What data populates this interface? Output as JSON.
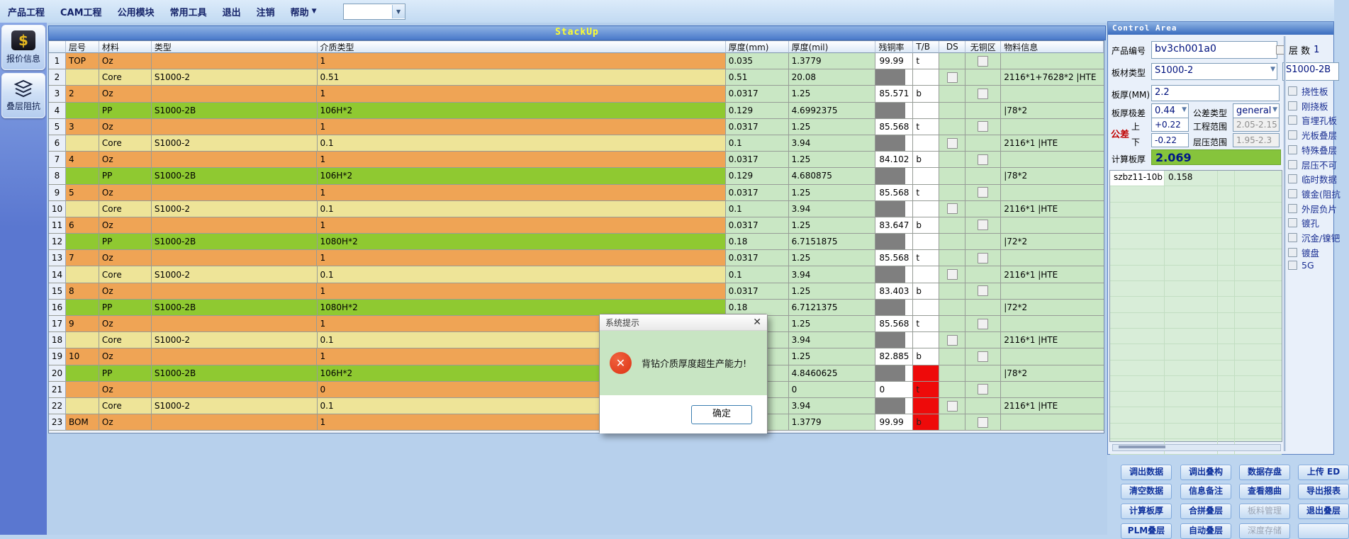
{
  "menu": {
    "items": [
      "产品工程",
      "CAM工程",
      "公用模块",
      "常用工具",
      "退出",
      "注销",
      "帮助"
    ],
    "combo_value": ""
  },
  "sidebar": {
    "buttons": [
      {
        "label": "报价信息",
        "icon": "dollar-icon"
      },
      {
        "label": "叠层阻抗",
        "icon": "layers-icon"
      }
    ]
  },
  "stackup": {
    "title": "StackUp",
    "header": {
      "layer": "层号",
      "material": "材料",
      "type": "类型",
      "medium": "介质类型",
      "mm": "厚度(mm)",
      "mil": "厚度(mil)",
      "copper": "残铜率",
      "tb": "T/B",
      "ds": "DS",
      "nocu": "无铜区",
      "info": "物料信息"
    },
    "rows": [
      {
        "n": "1",
        "layer": "TOP",
        "mat": "Oz",
        "type": "",
        "med": "1",
        "mm": "0.035",
        "mil": "1.3779",
        "cu": "99.99",
        "cu_gray": false,
        "tb": "t",
        "tb_red": false,
        "ds_cb": false,
        "nocu_cb": true,
        "info": "",
        "kind": "oz"
      },
      {
        "n": "2",
        "layer": "",
        "mat": "Core",
        "type": "S1000-2",
        "med": "0.51",
        "mm": "0.51",
        "mil": "20.08",
        "cu": "",
        "cu_gray": true,
        "tb": "",
        "tb_red": false,
        "ds_cb": true,
        "nocu_cb": false,
        "info": "2116*1+7628*2 |HTE",
        "kind": "core"
      },
      {
        "n": "3",
        "layer": "2",
        "mat": "Oz",
        "type": "",
        "med": "1",
        "mm": "0.0317",
        "mil": "1.25",
        "cu": "85.571",
        "cu_gray": false,
        "tb": "b",
        "tb_red": false,
        "ds_cb": false,
        "nocu_cb": true,
        "info": "",
        "kind": "oz"
      },
      {
        "n": "4",
        "layer": "",
        "mat": "PP",
        "type": "S1000-2B",
        "med": "106H*2",
        "mm": "0.129",
        "mil": "4.6992375",
        "cu": "",
        "cu_gray": true,
        "tb": "",
        "tb_red": false,
        "ds_cb": false,
        "nocu_cb": false,
        "info": "|78*2",
        "kind": "pp"
      },
      {
        "n": "5",
        "layer": "3",
        "mat": "Oz",
        "type": "",
        "med": "1",
        "mm": "0.0317",
        "mil": "1.25",
        "cu": "85.568",
        "cu_gray": false,
        "tb": "t",
        "tb_red": false,
        "ds_cb": false,
        "nocu_cb": true,
        "info": "",
        "kind": "oz"
      },
      {
        "n": "6",
        "layer": "",
        "mat": "Core",
        "type": "S1000-2",
        "med": "0.1",
        "mm": "0.1",
        "mil": "3.94",
        "cu": "",
        "cu_gray": true,
        "tb": "",
        "tb_red": false,
        "ds_cb": true,
        "nocu_cb": false,
        "info": "2116*1 |HTE",
        "kind": "core"
      },
      {
        "n": "7",
        "layer": "4",
        "mat": "Oz",
        "type": "",
        "med": "1",
        "mm": "0.0317",
        "mil": "1.25",
        "cu": "84.102",
        "cu_gray": false,
        "tb": "b",
        "tb_red": false,
        "ds_cb": false,
        "nocu_cb": true,
        "info": "",
        "kind": "oz"
      },
      {
        "n": "8",
        "layer": "",
        "mat": "PP",
        "type": "S1000-2B",
        "med": "106H*2",
        "mm": "0.129",
        "mil": "4.680875",
        "cu": "",
        "cu_gray": true,
        "tb": "",
        "tb_red": false,
        "ds_cb": false,
        "nocu_cb": false,
        "info": "|78*2",
        "kind": "pp"
      },
      {
        "n": "9",
        "layer": "5",
        "mat": "Oz",
        "type": "",
        "med": "1",
        "mm": "0.0317",
        "mil": "1.25",
        "cu": "85.568",
        "cu_gray": false,
        "tb": "t",
        "tb_red": false,
        "ds_cb": false,
        "nocu_cb": true,
        "info": "",
        "kind": "oz"
      },
      {
        "n": "10",
        "layer": "",
        "mat": "Core",
        "type": "S1000-2",
        "med": "0.1",
        "mm": "0.1",
        "mil": "3.94",
        "cu": "",
        "cu_gray": true,
        "tb": "",
        "tb_red": false,
        "ds_cb": true,
        "nocu_cb": false,
        "info": "2116*1 |HTE",
        "kind": "core"
      },
      {
        "n": "11",
        "layer": "6",
        "mat": "Oz",
        "type": "",
        "med": "1",
        "mm": "0.0317",
        "mil": "1.25",
        "cu": "83.647",
        "cu_gray": false,
        "tb": "b",
        "tb_red": false,
        "ds_cb": false,
        "nocu_cb": true,
        "info": "",
        "kind": "oz"
      },
      {
        "n": "12",
        "layer": "",
        "mat": "PP",
        "type": "S1000-2B",
        "med": "1080H*2",
        "mm": "0.18",
        "mil": "6.7151875",
        "cu": "",
        "cu_gray": true,
        "tb": "",
        "tb_red": false,
        "ds_cb": false,
        "nocu_cb": false,
        "info": "|72*2",
        "kind": "pp"
      },
      {
        "n": "13",
        "layer": "7",
        "mat": "Oz",
        "type": "",
        "med": "1",
        "mm": "0.0317",
        "mil": "1.25",
        "cu": "85.568",
        "cu_gray": false,
        "tb": "t",
        "tb_red": false,
        "ds_cb": false,
        "nocu_cb": true,
        "info": "",
        "kind": "oz"
      },
      {
        "n": "14",
        "layer": "",
        "mat": "Core",
        "type": "S1000-2",
        "med": "0.1",
        "mm": "0.1",
        "mil": "3.94",
        "cu": "",
        "cu_gray": true,
        "tb": "",
        "tb_red": false,
        "ds_cb": true,
        "nocu_cb": false,
        "info": "2116*1 |HTE",
        "kind": "core"
      },
      {
        "n": "15",
        "layer": "8",
        "mat": "Oz",
        "type": "",
        "med": "1",
        "mm": "0.0317",
        "mil": "1.25",
        "cu": "83.403",
        "cu_gray": false,
        "tb": "b",
        "tb_red": false,
        "ds_cb": false,
        "nocu_cb": true,
        "info": "",
        "kind": "oz"
      },
      {
        "n": "16",
        "layer": "",
        "mat": "PP",
        "type": "S1000-2B",
        "med": "1080H*2",
        "mm": "0.18",
        "mil": "6.7121375",
        "cu": "",
        "cu_gray": true,
        "tb": "",
        "tb_red": false,
        "ds_cb": false,
        "nocu_cb": false,
        "info": "|72*2",
        "kind": "pp"
      },
      {
        "n": "17",
        "layer": "9",
        "mat": "Oz",
        "type": "",
        "med": "1",
        "mm": "",
        "mil": "1.25",
        "cu": "85.568",
        "cu_gray": false,
        "tb": "t",
        "tb_red": false,
        "ds_cb": false,
        "nocu_cb": true,
        "info": "",
        "kind": "oz"
      },
      {
        "n": "18",
        "layer": "",
        "mat": "Core",
        "type": "S1000-2",
        "med": "0.1",
        "mm": "",
        "mil": "3.94",
        "cu": "",
        "cu_gray": true,
        "tb": "",
        "tb_red": false,
        "ds_cb": true,
        "nocu_cb": false,
        "info": "2116*1 |HTE",
        "kind": "core"
      },
      {
        "n": "19",
        "layer": "10",
        "mat": "Oz",
        "type": "",
        "med": "1",
        "mm": "",
        "mil": "1.25",
        "cu": "82.885",
        "cu_gray": false,
        "tb": "b",
        "tb_red": false,
        "ds_cb": false,
        "nocu_cb": true,
        "info": "",
        "kind": "oz"
      },
      {
        "n": "20",
        "layer": "",
        "mat": "PP",
        "type": "S1000-2B",
        "med": "106H*2",
        "mm": "",
        "mil": "4.8460625",
        "cu": "",
        "cu_gray": true,
        "tb": "",
        "tb_red": true,
        "ds_cb": false,
        "nocu_cb": false,
        "info": "|78*2",
        "kind": "pp"
      },
      {
        "n": "21",
        "layer": "",
        "mat": "Oz",
        "type": "",
        "med": "0",
        "mm": "",
        "mil": "0",
        "cu": "0",
        "cu_gray": false,
        "tb": "t",
        "tb_red": true,
        "ds_cb": false,
        "nocu_cb": true,
        "info": "",
        "kind": "oz"
      },
      {
        "n": "22",
        "layer": "",
        "mat": "Core",
        "type": "S1000-2",
        "med": "0.1",
        "mm": "",
        "mil": "3.94",
        "cu": "",
        "cu_gray": true,
        "tb": "",
        "tb_red": true,
        "ds_cb": true,
        "nocu_cb": false,
        "info": "2116*1 |HTE",
        "kind": "core"
      },
      {
        "n": "23",
        "layer": "BOM",
        "mat": "Oz",
        "type": "",
        "med": "1",
        "mm": "",
        "mil": "1.3779",
        "cu": "99.99",
        "cu_gray": false,
        "tb": "b",
        "tb_red": true,
        "ds_cb": false,
        "nocu_cb": true,
        "info": "",
        "kind": "oz"
      }
    ]
  },
  "dialog": {
    "title": "系统提示",
    "close": "✕",
    "message": "背钻介质厚度超生产能力!",
    "ok": "确定"
  },
  "control": {
    "panel_title": "Control Area",
    "product_label": "产品编号",
    "product_value": "bv3ch001a0",
    "layers_label": "层 数",
    "layers_value": "1",
    "board_type_label": "板材类型",
    "board_type_value": "S1000-2",
    "board_type2_value": "S1000-2B",
    "thickness_label": "板厚(MM)",
    "thickness_value": "2.2",
    "range_label": "板厚极差",
    "range_value": "0.44",
    "tol_type_label": "公差类型",
    "tol_type_value": "general",
    "tol_label": "公差",
    "tol_up_label": "上",
    "tol_up_value": "+0.22",
    "tol_down_label": "下",
    "tol_down_value": "-0.22",
    "eng_range_label": "工程范围",
    "eng_range_value": "2.05-2.15",
    "press_range_label": "层压范围",
    "press_range_value": "1.95-2.3",
    "calc_label": "计算板厚",
    "calc_value": "2.069",
    "grid_first_row": [
      "szbz11-10b",
      "0.158",
      "",
      ""
    ]
  },
  "side_checks": [
    "挠性板",
    "刚挠板",
    "盲埋孔板",
    "光板叠层",
    "特殊叠层",
    "层压不可",
    "临时数据",
    "镀金(阻抗",
    "外层负片",
    "镀孔",
    "沉金/镍钯",
    "镀盘",
    "5G"
  ],
  "action_buttons": [
    [
      {
        "label": "调出数据"
      },
      {
        "label": "调出叠构"
      },
      {
        "label": "数据存盘"
      },
      {
        "label": "上传 ED"
      }
    ],
    [
      {
        "label": "清空数据"
      },
      {
        "label": "信息备注"
      },
      {
        "label": "查看翘曲"
      },
      {
        "label": "导出报表"
      }
    ],
    [
      {
        "label": "计算板厚"
      },
      {
        "label": "合拼叠层"
      },
      {
        "label": "板料管理",
        "disabled": true
      },
      {
        "label": "退出叠层"
      }
    ],
    [
      {
        "label": "PLM叠层"
      },
      {
        "label": "自动叠层"
      },
      {
        "label": "深度存储",
        "disabled": true
      },
      {
        "label": ""
      }
    ]
  ],
  "colors": {
    "row_oz": "#efa455",
    "row_core": "#eee498",
    "row_pp": "#8fc931",
    "row_value_green": "#c9e7c4",
    "copper_gray_block": "#7f7f7f",
    "alert_red": "#ee0a0a",
    "calc_green": "#86c43c",
    "title_yellow": "#ffff2e",
    "panel_blue": "#3a6cbe"
  }
}
